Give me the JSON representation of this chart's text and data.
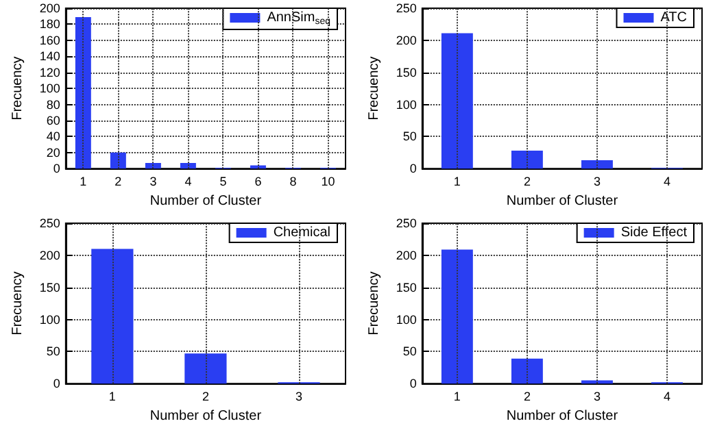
{
  "chart_data": [
    {
      "type": "bar",
      "xlabel": "Number of Cluster",
      "ylabel": "Frecuency",
      "categories": [
        "1",
        "2",
        "3",
        "4",
        "5",
        "6",
        "8",
        "10"
      ],
      "series": [
        {
          "name": "AnnSim$_{seq}$",
          "color": "#2a3ef2",
          "values": [
            189,
            20,
            7,
            7,
            1,
            4,
            1,
            1
          ]
        }
      ],
      "ylim": [
        0,
        200
      ],
      "yticks": [
        0,
        20,
        40,
        60,
        80,
        100,
        120,
        140,
        160,
        180,
        200
      ],
      "grid": true,
      "legend": "top right"
    },
    {
      "type": "bar",
      "xlabel": "Number of Cluster",
      "ylabel": "Frecuency",
      "categories": [
        "1",
        "2",
        "3",
        "4"
      ],
      "series": [
        {
          "name": "ATC",
          "color": "#2a3ef2",
          "values": [
            211,
            28,
            13,
            1
          ]
        }
      ],
      "ylim": [
        0,
        250
      ],
      "yticks": [
        0,
        50,
        100,
        150,
        200,
        250
      ],
      "grid": true,
      "legend": "top right"
    },
    {
      "type": "bar",
      "xlabel": "Number of Cluster",
      "ylabel": "Frecuency",
      "categories": [
        "1",
        "2",
        "3"
      ],
      "series": [
        {
          "name": "Chemical",
          "color": "#2a3ef2",
          "values": [
            210,
            47,
            2
          ]
        }
      ],
      "ylim": [
        0,
        250
      ],
      "yticks": [
        0,
        50,
        100,
        150,
        200,
        250
      ],
      "grid": true,
      "legend": "top right"
    },
    {
      "type": "bar",
      "xlabel": "Number of Cluster",
      "ylabel": "Frecuency",
      "categories": [
        "1",
        "2",
        "3",
        "4"
      ],
      "series": [
        {
          "name": "Side Effect",
          "color": "#2a3ef2",
          "values": [
            209,
            39,
            5,
            2
          ]
        }
      ],
      "ylim": [
        0,
        250
      ],
      "yticks": [
        0,
        50,
        100,
        150,
        200,
        250
      ],
      "grid": true,
      "legend": "top right"
    }
  ]
}
